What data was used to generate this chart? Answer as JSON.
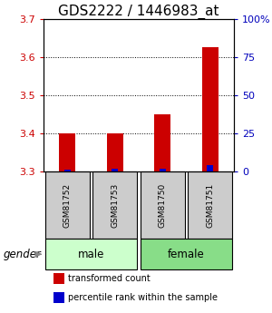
{
  "title": "GDS2222 / 1446983_at",
  "samples": [
    "GSM81752",
    "GSM81753",
    "GSM81750",
    "GSM81751"
  ],
  "groups": [
    "male",
    "male",
    "female",
    "female"
  ],
  "red_values": [
    3.4,
    3.4,
    3.45,
    3.625
  ],
  "blue_values": [
    3.305,
    3.307,
    3.306,
    3.315
  ],
  "base_value": 3.3,
  "ylim_left": [
    3.3,
    3.7
  ],
  "ylim_right": [
    0,
    100
  ],
  "yticks_left": [
    3.3,
    3.4,
    3.5,
    3.6,
    3.7
  ],
  "yticks_right": [
    0,
    25,
    50,
    75,
    100
  ],
  "bar_width": 0.35,
  "blue_bar_width": 0.14,
  "red_color": "#cc0000",
  "blue_color": "#0000cc",
  "title_fontsize": 11,
  "tick_fontsize": 8,
  "label_color_left": "#cc0000",
  "label_color_right": "#0000bb",
  "male_group_label": "male",
  "female_group_label": "female",
  "sample_box_color": "#cccccc",
  "group_box_color_male": "#ccffcc",
  "group_box_color_female": "#88dd88",
  "gender_label": "gender",
  "legend_red": "transformed count",
  "legend_blue": "percentile rank within the sample",
  "legend_fontsize": 7
}
